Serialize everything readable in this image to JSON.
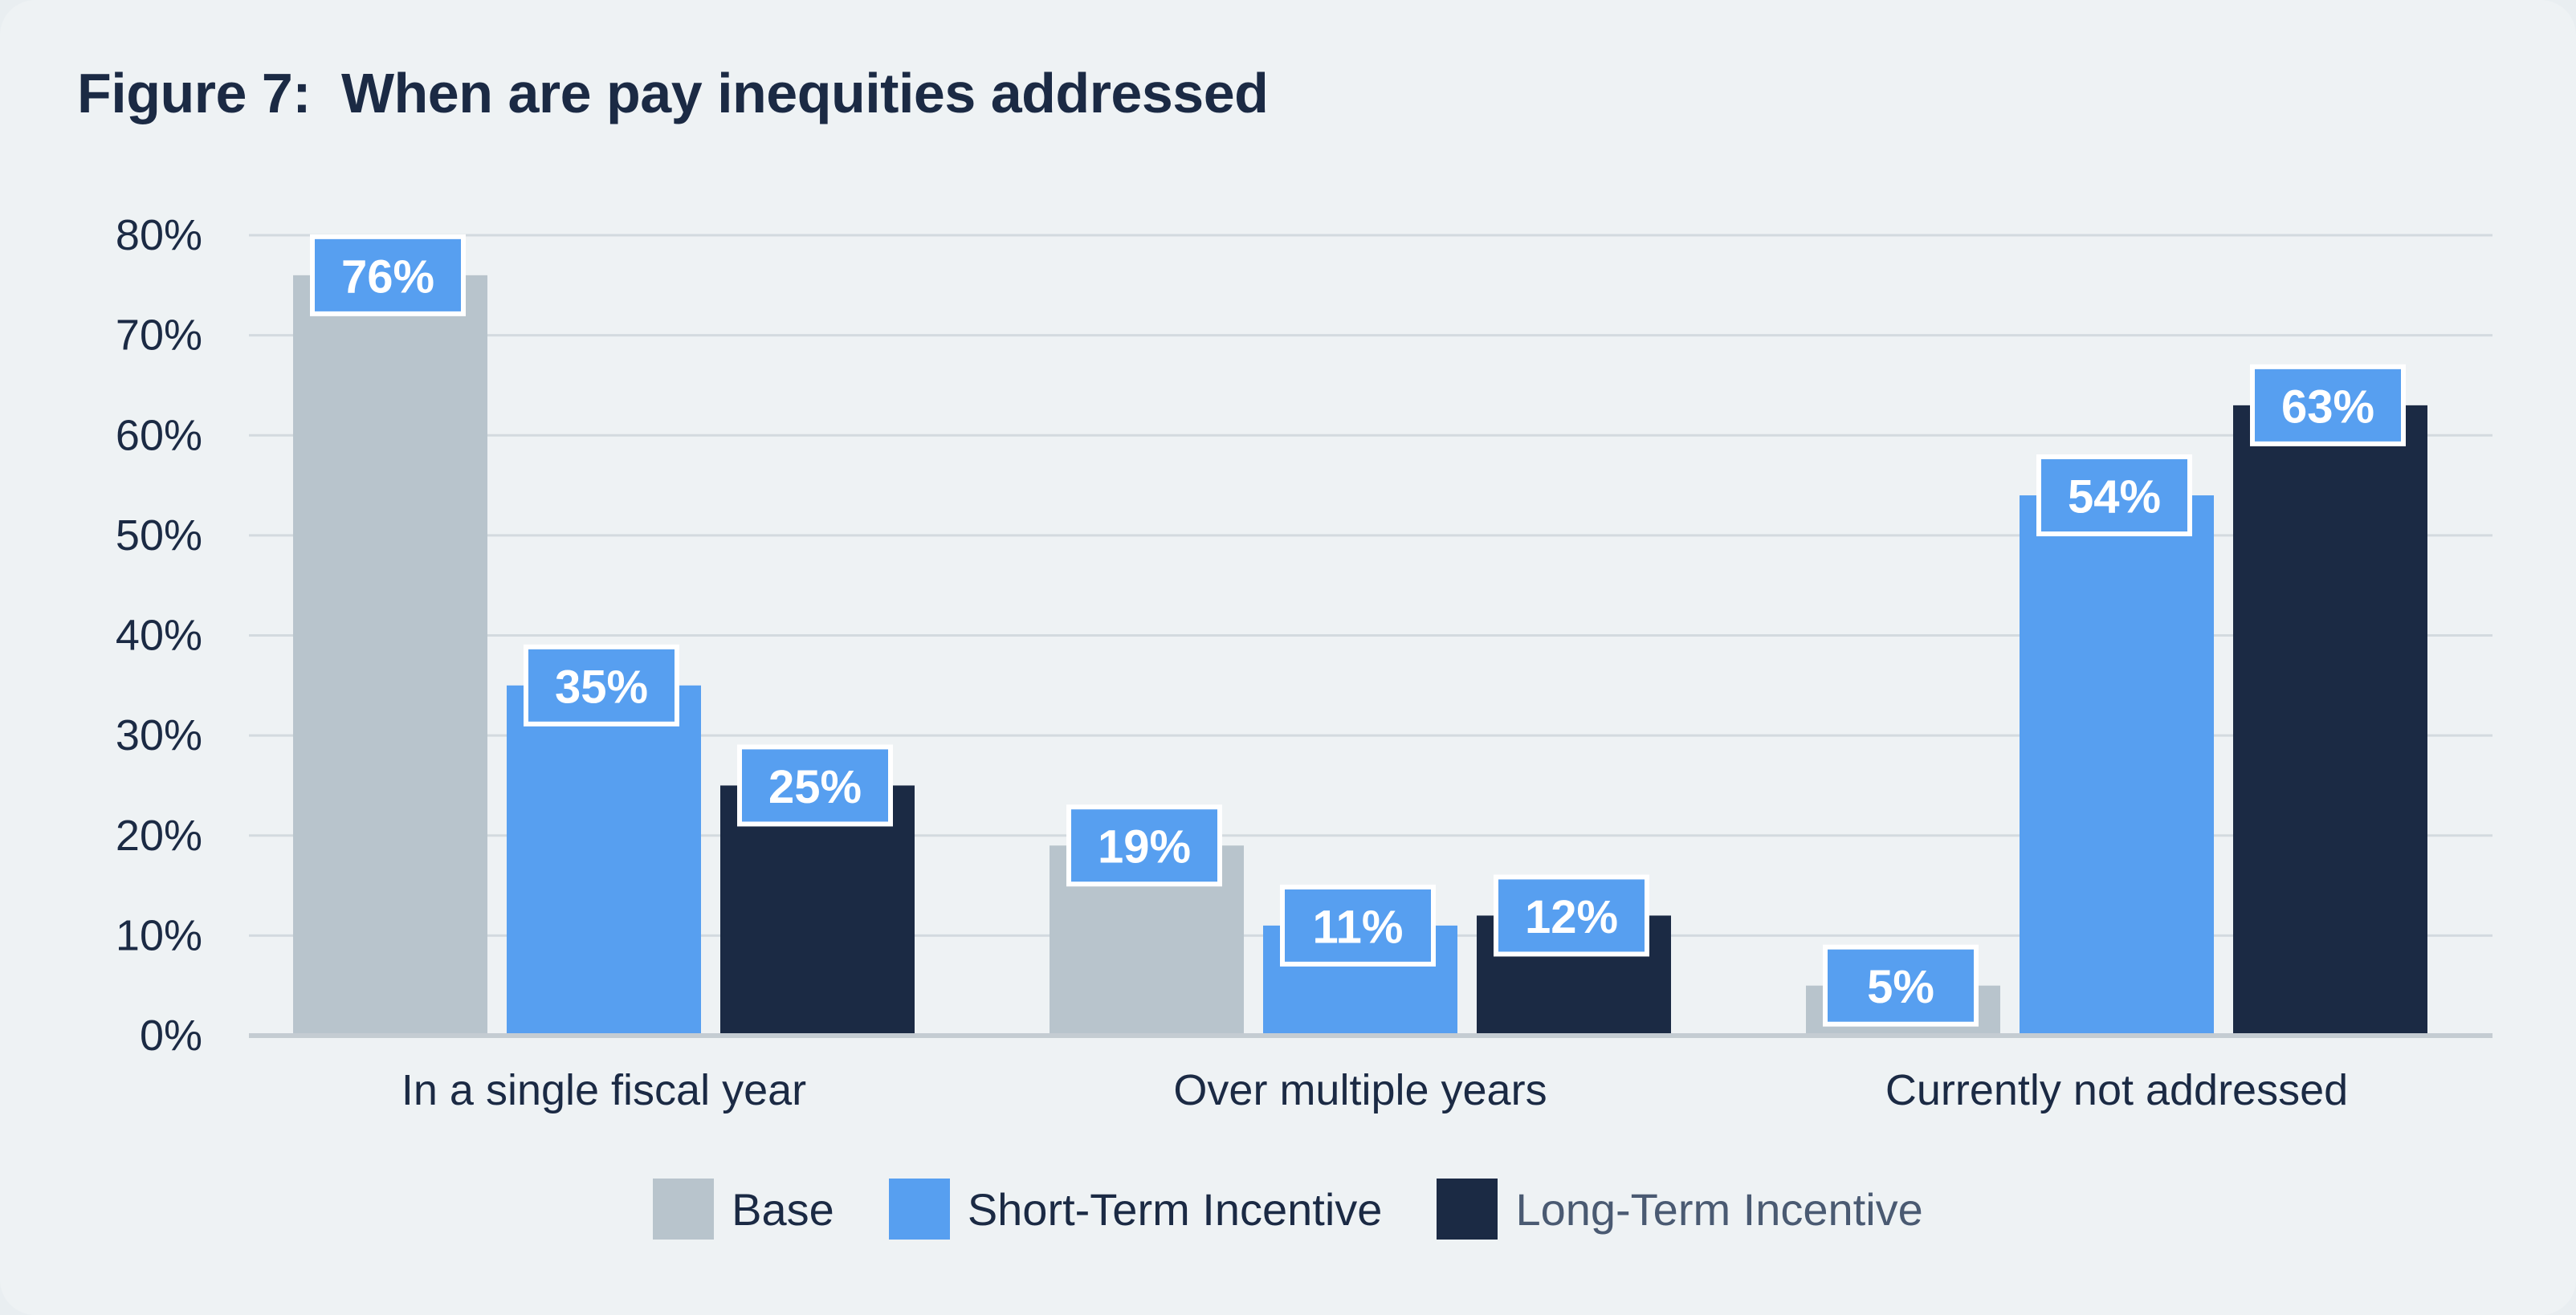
{
  "title": "Figure 7:  When are pay inequities addressed",
  "chart_data": {
    "type": "bar",
    "categories": [
      "In a single fiscal year",
      "Over multiple years",
      "Currently not addressed"
    ],
    "series": [
      {
        "name": "Base",
        "values": [
          76,
          19,
          5
        ],
        "labels": [
          "76%",
          "19%",
          "5%"
        ],
        "color": "#b8c4cc"
      },
      {
        "name": "Short-Term Incentive",
        "values": [
          35,
          11,
          54
        ],
        "labels": [
          "35%",
          "11%",
          "54%"
        ],
        "color": "#579ff0"
      },
      {
        "name": "Long-Term Incentive",
        "values": [
          25,
          12,
          63
        ],
        "labels": [
          "25%",
          "12%",
          "63%"
        ],
        "color": "#1b2a44"
      }
    ],
    "ylim": [
      0,
      80
    ],
    "yticks": [
      0,
      10,
      20,
      30,
      40,
      50,
      60,
      70,
      80
    ],
    "ytick_labels": [
      "0%",
      "10%",
      "20%",
      "30%",
      "40%",
      "50%",
      "60%",
      "70%",
      "80%"
    ],
    "xlabel": "",
    "ylabel": "",
    "grid": true,
    "legend_position": "bottom",
    "label_box_color": "#579ff0"
  }
}
